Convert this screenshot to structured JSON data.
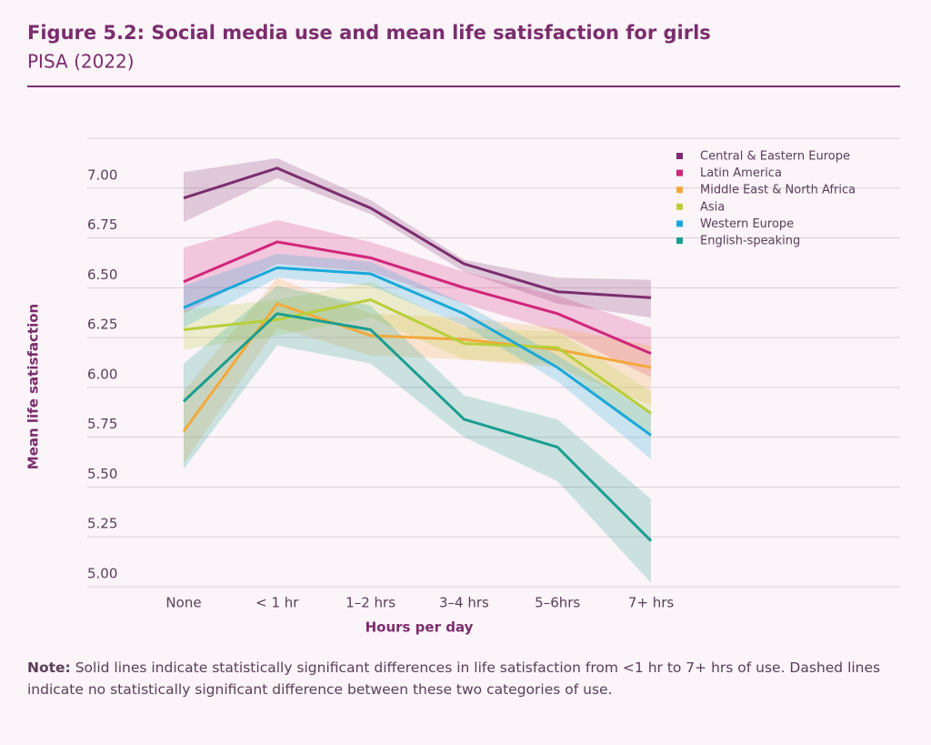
{
  "chart_data": {
    "type": "line",
    "title": "Figure 5.2: Social media use and mean life satisfaction for girls",
    "subtitle": "PISA (2022)",
    "ylabel": "Mean life satisfaction",
    "xlabel": "Hours per day",
    "note_label": "Note:",
    "note": "Solid lines indicate statistically significant differences in life satisfaction from <1 hr to 7+ hrs of use. Dashed lines indicate no statistically significant difference between these two categories of use.",
    "categories": [
      "None",
      "< 1 hr",
      "1–2 hrs",
      "3–4 hrs",
      "5–6hrs",
      "7+ hrs"
    ],
    "ylim": [
      5,
      7.25
    ],
    "yticks": [
      {
        "value": 5,
        "label": "5.00"
      },
      {
        "value": 5.25,
        "label": "5.25"
      },
      {
        "value": 5.5,
        "label": "5.50"
      },
      {
        "value": 5.75,
        "label": "5.75"
      },
      {
        "value": 6,
        "label": "6.00"
      },
      {
        "value": 6.25,
        "label": "6.25"
      },
      {
        "value": 6.5,
        "label": "6.50"
      },
      {
        "value": 6.75,
        "label": "6.75"
      },
      {
        "value": 7,
        "label": "7.00"
      }
    ],
    "grid": true,
    "legend": "upper right",
    "series": [
      {
        "name": "Central & Eastern Europe",
        "color": "#7b2d6e",
        "values": [
          6.95,
          7.1,
          6.9,
          6.62,
          6.48,
          6.45
        ],
        "lower": [
          6.83,
          7.05,
          6.87,
          6.58,
          6.42,
          6.35
        ],
        "upper": [
          7.08,
          7.15,
          6.94,
          6.64,
          6.55,
          6.54
        ]
      },
      {
        "name": "Latin America",
        "color": "#d0267b",
        "values": [
          6.53,
          6.73,
          6.65,
          6.5,
          6.37,
          6.17
        ],
        "lower": [
          6.37,
          6.62,
          6.58,
          6.42,
          6.28,
          6.05
        ],
        "upper": [
          6.7,
          6.84,
          6.73,
          6.58,
          6.46,
          6.3
        ]
      },
      {
        "name": "Middle East & North Africa",
        "color": "#f2a93b",
        "values": [
          5.78,
          6.42,
          6.26,
          6.24,
          6.19,
          6.1
        ],
        "lower": [
          5.62,
          6.3,
          6.16,
          6.14,
          6.1,
          5.91
        ],
        "upper": [
          5.98,
          6.55,
          6.37,
          6.35,
          6.3,
          6.21
        ]
      },
      {
        "name": "Asia",
        "color": "#b8cf3a",
        "values": [
          6.29,
          6.34,
          6.44,
          6.22,
          6.2,
          5.87
        ],
        "lower": [
          6.19,
          6.26,
          6.35,
          6.14,
          6.12,
          5.75
        ],
        "upper": [
          6.39,
          6.44,
          6.53,
          6.3,
          6.28,
          5.98
        ]
      },
      {
        "name": "Western Europe",
        "color": "#1ba8d8",
        "values": [
          6.4,
          6.6,
          6.57,
          6.37,
          6.1,
          5.76
        ],
        "lower": [
          6.3,
          6.55,
          6.51,
          6.31,
          6.03,
          5.64
        ],
        "upper": [
          6.51,
          6.67,
          6.63,
          6.42,
          6.16,
          5.87
        ]
      },
      {
        "name": "English-speaking",
        "color": "#1a9e8f",
        "values": [
          5.93,
          6.37,
          6.29,
          5.84,
          5.7,
          5.23
        ],
        "lower": [
          5.59,
          6.21,
          6.12,
          5.75,
          5.53,
          5.02
        ],
        "upper": [
          6.12,
          6.51,
          6.41,
          5.96,
          5.84,
          5.44
        ]
      }
    ]
  }
}
